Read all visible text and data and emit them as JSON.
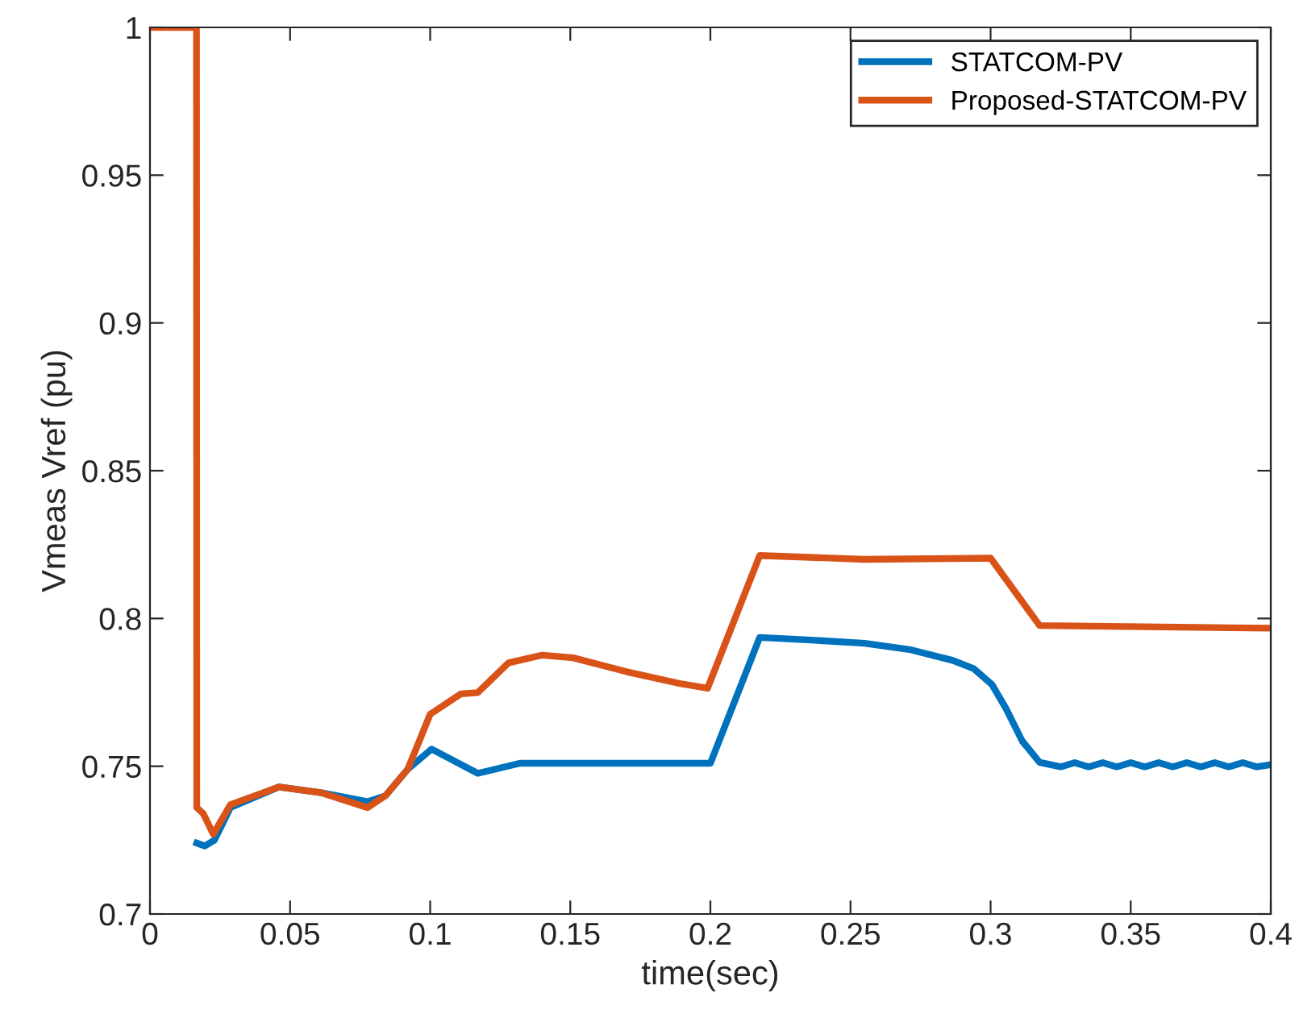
{
  "chart_data": {
    "type": "line",
    "xlabel": "time(sec)",
    "ylabel": "Vmeas Vref (pu)",
    "xlim": [
      0,
      0.4
    ],
    "xticks": [
      0,
      0.05,
      0.1,
      0.15,
      0.2,
      0.25,
      0.3,
      0.35,
      0.4
    ],
    "ylim": [
      0.7,
      1
    ],
    "yticks": [
      0.7,
      0.75,
      0.8,
      0.85,
      0.9,
      0.95,
      1
    ],
    "grid": false,
    "legend": "top right",
    "marker": "none",
    "line_style": "solid",
    "series": [
      {
        "name": "STATCOM-PV",
        "color": "#0072bd",
        "x": [
          0.0167,
          0.0195,
          0.023,
          0.0287,
          0.046,
          0.0613,
          0.0776,
          0.084,
          0.092,
          0.1005,
          0.117,
          0.132,
          0.16,
          0.2,
          0.2176,
          0.236,
          0.255,
          0.271,
          0.2865,
          0.294,
          0.3005,
          0.3055,
          0.3113,
          0.3175,
          0.325,
          0.33,
          0.335,
          0.34,
          0.345,
          0.35,
          0.355,
          0.36,
          0.365,
          0.37,
          0.375,
          0.38,
          0.385,
          0.39,
          0.395,
          0.4
        ],
        "values": [
          0.724,
          0.723,
          0.725,
          0.736,
          0.743,
          0.741,
          0.738,
          0.74,
          0.749,
          0.7558,
          0.7476,
          0.751,
          0.751,
          0.751,
          0.7936,
          0.7927,
          0.7916,
          0.7895,
          0.7858,
          0.783,
          0.7776,
          0.7695,
          0.7585,
          0.7513,
          0.7498,
          0.7512,
          0.7498,
          0.7512,
          0.7498,
          0.7512,
          0.7498,
          0.7512,
          0.7498,
          0.7512,
          0.7498,
          0.7512,
          0.7498,
          0.7512,
          0.7498,
          0.7505
        ]
      },
      {
        "name": "Proposed-STATCOM-PV",
        "color": "#d95319",
        "x": [
          0,
          0.0166,
          0.0167,
          0.019,
          0.0226,
          0.0287,
          0.046,
          0.0613,
          0.0776,
          0.084,
          0.092,
          0.1,
          0.111,
          0.117,
          0.128,
          0.14,
          0.151,
          0.17,
          0.189,
          0.199,
          0.2176,
          0.255,
          0.3,
          0.3175,
          0.4
        ],
        "values": [
          1,
          1,
          0.736,
          0.734,
          0.727,
          0.737,
          0.743,
          0.741,
          0.736,
          0.74,
          0.749,
          0.7676,
          0.7745,
          0.7749,
          0.785,
          0.7876,
          0.7867,
          0.782,
          0.778,
          0.7764,
          0.8213,
          0.82,
          0.8204,
          0.7976,
          0.7967
        ]
      }
    ]
  }
}
